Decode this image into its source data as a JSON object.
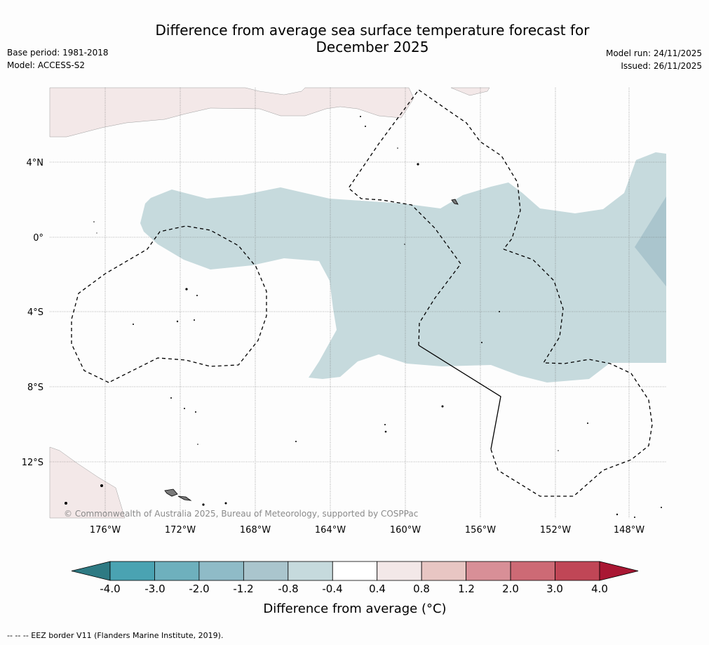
{
  "title_line1": "Difference from average sea surface temperature forecast for",
  "title_line2": "December 2025",
  "base_period": "Base period: 1981-2018",
  "model": "Model: ACCESS-S2",
  "model_run": "Model run: 24/11/2025",
  "issued": "Issued: 26/11/2025",
  "copyright": "© Commonwealth of Australia 2025, Bureau of Meteorology, supported by COSPPac",
  "lat_labels": [
    "4°N",
    "0°",
    "4°S",
    "8°S",
    "12°S"
  ],
  "lon_labels": [
    "176°W",
    "172°W",
    "168°W",
    "164°W",
    "160°W",
    "156°W",
    "152°W",
    "148°W"
  ],
  "legend": {
    "ticks": [
      "-4.0",
      "-3.0",
      "-2.0",
      "-1.2",
      "-0.8",
      "-0.4",
      "0.4",
      "0.8",
      "1.2",
      "2.0",
      "3.0",
      "4.0"
    ],
    "label": "Difference from average (°C)",
    "colors": [
      "#2e7a83",
      "#4aa3b2",
      "#6eb0bd",
      "#8fbbc7",
      "#aac5cd",
      "#c6dadd",
      "#ffffff",
      "#f3e8e8",
      "#e8c6c3",
      "#d88f97",
      "#cd6a75",
      "#c04656",
      "#a91733"
    ]
  },
  "footnote": "-- -- -- EEZ border V11 (Flanders Marine Institute, 2019)."
}
